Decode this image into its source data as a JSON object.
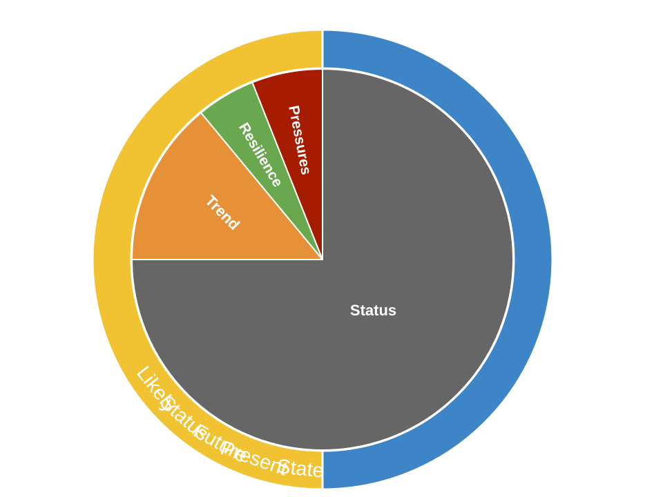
{
  "chart_data": {
    "type": "pie",
    "title": "",
    "inner": {
      "slices": [
        {
          "label": "Status",
          "value": 75,
          "color": "#666666"
        },
        {
          "label": "Trend",
          "value": 14,
          "color": "#E69138"
        },
        {
          "label": "Resilience",
          "value": 5,
          "color": "#6AA84F"
        },
        {
          "label": "Pressures",
          "value": 6,
          "color": "#A61C00"
        }
      ]
    },
    "outer": {
      "slices": [
        {
          "label": "Present Status",
          "words": [
            "Present",
            "Status"
          ],
          "value": 50,
          "color": "#3D85C6"
        },
        {
          "label": "Likely Future State",
          "words": [
            "Likely",
            "Future",
            "State"
          ],
          "value": 50,
          "color": "#F1C232"
        }
      ]
    }
  }
}
